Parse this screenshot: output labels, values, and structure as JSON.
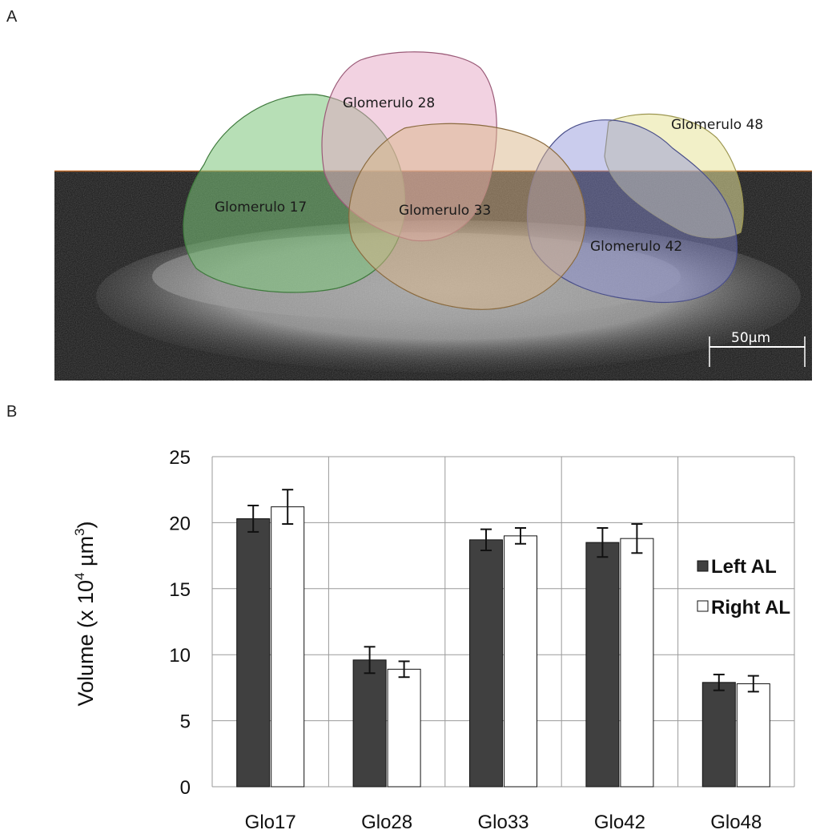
{
  "panels": {
    "a_label": "A",
    "b_label": "B"
  },
  "image_panel": {
    "glomeruli": [
      {
        "name": "Glomerulo 17",
        "color": "#7cc47a"
      },
      {
        "name": "Glomerulo 28",
        "color": "#e6a5c4"
      },
      {
        "name": "Glomerulo 33",
        "color": "#d9b58a"
      },
      {
        "name": "Glomerulo 42",
        "color": "#8a8fd6"
      },
      {
        "name": "Glomerulo 48",
        "color": "#e8e49a"
      }
    ],
    "scale_bar": "50µm"
  },
  "chart_data": {
    "type": "bar",
    "categories": [
      "Glo17",
      "Glo28",
      "Glo33",
      "Glo42",
      "Glo48"
    ],
    "series": [
      {
        "name": "Left AL",
        "color": "#404040",
        "values": [
          20.3,
          9.6,
          18.7,
          18.5,
          7.9
        ],
        "errors": [
          1.0,
          1.0,
          0.8,
          1.1,
          0.6
        ]
      },
      {
        "name": "Right AL",
        "color": "#ffffff",
        "values": [
          21.2,
          8.9,
          19.0,
          18.8,
          7.8
        ],
        "errors": [
          1.3,
          0.6,
          0.6,
          1.1,
          0.6
        ]
      }
    ],
    "title": "",
    "xlabel": "",
    "ylabel_prefix": "Volume (x 10",
    "ylabel_exp1": "4",
    "ylabel_mid": " µm",
    "ylabel_exp2": "3",
    "ylabel_suffix": ")",
    "ylim": [
      0,
      25
    ],
    "yticks": [
      "0",
      "5",
      "10",
      "15",
      "20",
      "25"
    ],
    "grid": true,
    "legend_position": "right"
  }
}
